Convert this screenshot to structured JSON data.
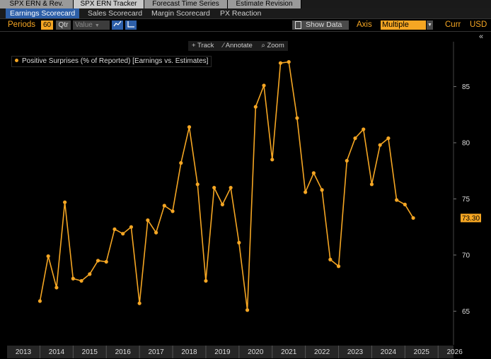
{
  "tabs": [
    {
      "label": "SPX ERN & Rev."
    },
    {
      "label": "SPX ERN Tracker"
    },
    {
      "label": "Forecast Time Series"
    },
    {
      "label": "Estimate Revision"
    }
  ],
  "subtabs": [
    {
      "label": "Earnings Scorecard"
    },
    {
      "label": "Sales Scorecard"
    },
    {
      "label": "Margin Scorecard"
    },
    {
      "label": "PX Reaction"
    }
  ],
  "toolbar": {
    "periods_label": "Periods",
    "periods_value": "60",
    "freq_value": "Qtr",
    "value_select": "Value",
    "show_data_label": "Show Data",
    "axis_label": "Axis",
    "axis_value": "Multiple",
    "curr_label": "Curr",
    "curr_value": "USD"
  },
  "chart_tools": {
    "track": "Track",
    "annotate": "Annotate",
    "zoom": "Zoom"
  },
  "colors": {
    "series": "#f5a623",
    "background": "#000000"
  },
  "chart_data": {
    "type": "line",
    "series": [
      {
        "name": "Positive Surprises (% of Reported) [Earnings vs. Estimates]",
        "values": [
          65.9,
          69.9,
          67.1,
          74.7,
          67.9,
          67.7,
          68.3,
          69.5,
          69.4,
          72.3,
          71.9,
          72.5,
          65.7,
          73.1,
          72.0,
          74.4,
          73.9,
          78.2,
          81.4,
          76.3,
          67.7,
          76.0,
          74.5,
          76.0,
          71.1,
          65.1,
          83.2,
          85.1,
          78.5,
          87.1,
          87.2,
          82.2,
          75.6,
          77.3,
          75.8,
          69.6,
          69.0,
          78.4,
          80.4,
          81.2,
          76.3,
          79.8,
          80.4,
          74.9,
          74.5,
          73.3
        ]
      }
    ],
    "first_period": "2013 Q3",
    "x_tick_labels": [
      "2013",
      "2014",
      "2015",
      "2016",
      "2017",
      "2018",
      "2019",
      "2020",
      "2021",
      "2022",
      "2023",
      "2024",
      "2025",
      "2026"
    ],
    "y_ticks": [
      65,
      70,
      75,
      80,
      85
    ],
    "ylim": [
      62,
      89
    ],
    "last_value_label": "73.30",
    "legend_position": "top-left"
  }
}
